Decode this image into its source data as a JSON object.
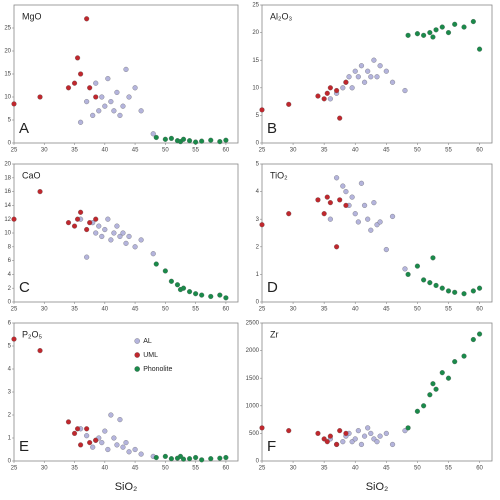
{
  "chart_data": [
    {
      "type": "scatter",
      "title": "MgO",
      "panel_label": "A",
      "xlim": [
        25,
        62
      ],
      "xticks": [
        25,
        30,
        35,
        40,
        45,
        50,
        55,
        60
      ],
      "ylim": [
        0,
        30
      ],
      "yticks": [
        0,
        5,
        10,
        15,
        20,
        25
      ],
      "series": [
        {
          "color": "#b4b4dc",
          "x": [
            36,
            37,
            38,
            38.5,
            39,
            39.5,
            40,
            40.5,
            41,
            41.5,
            42,
            42.5,
            43,
            43.5,
            44,
            45,
            46,
            48
          ],
          "y": [
            4.5,
            9,
            6,
            13,
            7,
            10,
            8,
            14,
            9,
            7,
            11,
            6,
            8,
            16,
            10,
            12,
            7,
            2
          ]
        },
        {
          "color": "#c0272d",
          "x": [
            25,
            29.3,
            34,
            35,
            35.5,
            36,
            37,
            37.5,
            38.5
          ],
          "y": [
            8.5,
            10,
            12,
            13,
            18.5,
            15,
            27,
            12,
            10
          ]
        },
        {
          "color": "#1a8a4a",
          "x": [
            48.5,
            50,
            51,
            52,
            52.5,
            53,
            54,
            55,
            56,
            57.5,
            59,
            60
          ],
          "y": [
            1.2,
            0.8,
            1,
            0.5,
            0.3,
            0.8,
            0.5,
            0.2,
            0.4,
            0.6,
            0.3,
            0.6
          ]
        }
      ]
    },
    {
      "type": "scatter",
      "title": "Al₂O₃",
      "panel_label": "B",
      "xlim": [
        25,
        62
      ],
      "xticks": [
        25,
        30,
        35,
        40,
        45,
        50,
        55,
        60
      ],
      "ylim": [
        0,
        25
      ],
      "yticks": [
        0,
        5,
        10,
        15,
        20,
        25
      ],
      "series": [
        {
          "color": "#b4b4dc",
          "x": [
            36,
            37,
            38,
            38.5,
            39,
            39.5,
            40,
            40.5,
            41,
            41.5,
            42,
            42.5,
            43,
            43.5,
            44,
            45,
            46,
            48
          ],
          "y": [
            8,
            9,
            10,
            11,
            12,
            10,
            13,
            12,
            14,
            11,
            13,
            12,
            15,
            12,
            14,
            13,
            11,
            9.5
          ]
        },
        {
          "color": "#c0272d",
          "x": [
            25,
            29.3,
            34,
            35,
            35.5,
            36,
            37,
            37.5,
            38.5
          ],
          "y": [
            6,
            7,
            8.5,
            8,
            9,
            10,
            9.5,
            4.5,
            11
          ]
        },
        {
          "color": "#1a8a4a",
          "x": [
            48.5,
            50,
            51,
            52,
            52.5,
            53,
            54,
            55,
            56,
            57.5,
            59,
            60
          ],
          "y": [
            19.5,
            19.8,
            19.5,
            20,
            19.2,
            20.5,
            21,
            20,
            21.5,
            21,
            22,
            17
          ]
        }
      ]
    },
    {
      "type": "scatter",
      "title": "CaO",
      "panel_label": "C",
      "xlim": [
        25,
        62
      ],
      "xticks": [
        25,
        30,
        35,
        40,
        45,
        50,
        55,
        60
      ],
      "ylim": [
        0,
        20
      ],
      "yticks": [
        0,
        2,
        4,
        6,
        8,
        10,
        12,
        14,
        16,
        18,
        20
      ],
      "series": [
        {
          "color": "#b4b4dc",
          "x": [
            36,
            37,
            38,
            38.5,
            39,
            39.5,
            40,
            40.5,
            41,
            41.5,
            42,
            42.5,
            43,
            43.5,
            44,
            45,
            46,
            48
          ],
          "y": [
            12,
            6.5,
            11.5,
            10,
            11,
            9.5,
            10.5,
            12,
            9,
            10,
            11,
            9.5,
            10,
            8.5,
            9.5,
            8,
            9,
            7
          ]
        },
        {
          "color": "#c0272d",
          "x": [
            25,
            29.3,
            34,
            35,
            35.5,
            36,
            37,
            37.5,
            38.5
          ],
          "y": [
            12,
            16,
            11.5,
            11,
            12,
            13,
            10.5,
            11.5,
            12
          ]
        },
        {
          "color": "#1a8a4a",
          "x": [
            48.5,
            50,
            51,
            52,
            52.5,
            53,
            54,
            55,
            56,
            57.5,
            59,
            60
          ],
          "y": [
            5.5,
            4.5,
            3,
            2.5,
            1.8,
            2,
            1.5,
            1.2,
            1,
            0.8,
            1,
            0.6
          ]
        }
      ]
    },
    {
      "type": "scatter",
      "title": "TiO₂",
      "panel_label": "D",
      "xlim": [
        25,
        62
      ],
      "xticks": [
        25,
        30,
        35,
        40,
        45,
        50,
        55,
        60
      ],
      "ylim": [
        0,
        5
      ],
      "yticks": [
        0,
        1,
        2,
        3,
        4,
        5
      ],
      "series": [
        {
          "color": "#b4b4dc",
          "x": [
            36,
            37,
            38,
            38.5,
            39,
            39.5,
            40,
            40.5,
            41,
            41.5,
            42,
            42.5,
            43,
            43.5,
            44,
            45,
            46,
            48
          ],
          "y": [
            3,
            4.5,
            4.2,
            4,
            3.5,
            3.8,
            3.2,
            2.9,
            4.3,
            3.5,
            3,
            2.6,
            3.6,
            2.8,
            2.9,
            1.9,
            3.1,
            1.2
          ]
        },
        {
          "color": "#c0272d",
          "x": [
            25,
            29.3,
            34,
            35,
            35.5,
            36,
            37,
            37.5,
            38.5
          ],
          "y": [
            2.8,
            3.2,
            3.7,
            3.2,
            3.8,
            3.6,
            2,
            3.7,
            3.5
          ]
        },
        {
          "color": "#1a8a4a",
          "x": [
            48.5,
            50,
            51,
            52,
            52.5,
            53,
            54,
            55,
            56,
            57.5,
            59,
            60
          ],
          "y": [
            1,
            1.3,
            0.8,
            0.7,
            1.6,
            0.6,
            0.5,
            0.4,
            0.35,
            0.3,
            0.4,
            0.5
          ]
        }
      ]
    },
    {
      "type": "scatter",
      "title": "P₂O₅",
      "panel_label": "E",
      "xlabel": "SiO₂",
      "legend": "upper-center",
      "xlim": [
        25,
        62
      ],
      "xticks": [
        25,
        30,
        35,
        40,
        45,
        50,
        55,
        60
      ],
      "ylim": [
        0,
        6
      ],
      "yticks": [
        0,
        1,
        2,
        3,
        4,
        5,
        6
      ],
      "series": [
        {
          "name": "AL",
          "color": "#b4b4dc",
          "x": [
            36,
            37,
            38,
            38.5,
            39,
            39.5,
            40,
            40.5,
            41,
            41.5,
            42,
            42.5,
            43,
            43.5,
            44,
            45,
            46,
            48
          ],
          "y": [
            1.4,
            1.1,
            0.6,
            0.9,
            1,
            0.8,
            1.3,
            0.5,
            2,
            1,
            0.7,
            1.8,
            0.6,
            0.8,
            0.4,
            0.5,
            0.3,
            0.2
          ]
        },
        {
          "name": "UML",
          "color": "#c0272d",
          "x": [
            25,
            29.3,
            34,
            35,
            35.5,
            36,
            37,
            37.5,
            38.5
          ],
          "y": [
            5.3,
            4.8,
            1.7,
            1.2,
            1.4,
            0.7,
            1.4,
            0.8,
            0.9
          ]
        },
        {
          "name": "Phonolite",
          "color": "#1a8a4a",
          "x": [
            48.5,
            50,
            51,
            52,
            52.5,
            53,
            54,
            55,
            56,
            57.5,
            59,
            60
          ],
          "y": [
            0.15,
            0.2,
            0.1,
            0.12,
            0.2,
            0.08,
            0.1,
            0.15,
            0.05,
            0.1,
            0.12,
            0.15
          ]
        }
      ]
    },
    {
      "type": "scatter",
      "title": "Zr",
      "panel_label": "F",
      "xlabel": "SiO₂",
      "xlim": [
        25,
        62
      ],
      "xticks": [
        25,
        30,
        35,
        40,
        45,
        50,
        55,
        60
      ],
      "ylim": [
        0,
        2500
      ],
      "yticks": [
        0,
        500,
        1000,
        1500,
        2000,
        2500
      ],
      "series": [
        {
          "color": "#b4b4dc",
          "x": [
            36,
            37,
            38,
            38.5,
            39,
            39.5,
            40,
            40.5,
            41,
            41.5,
            42,
            42.5,
            43,
            43.5,
            44,
            45,
            46,
            48
          ],
          "y": [
            400,
            300,
            350,
            450,
            500,
            350,
            400,
            550,
            300,
            450,
            600,
            500,
            400,
            350,
            450,
            500,
            300,
            550
          ]
        },
        {
          "color": "#c0272d",
          "x": [
            25,
            29.3,
            34,
            35,
            35.5,
            36,
            37,
            37.5,
            38.5
          ],
          "y": [
            600,
            550,
            500,
            400,
            350,
            450,
            300,
            550,
            500
          ]
        },
        {
          "color": "#1a8a4a",
          "x": [
            48.5,
            50,
            51,
            52,
            52.5,
            53,
            54,
            55,
            56,
            57.5,
            59,
            60
          ],
          "y": [
            600,
            900,
            1000,
            1200,
            1400,
            1300,
            1600,
            1500,
            1800,
            1900,
            2200,
            2300
          ]
        }
      ]
    }
  ]
}
